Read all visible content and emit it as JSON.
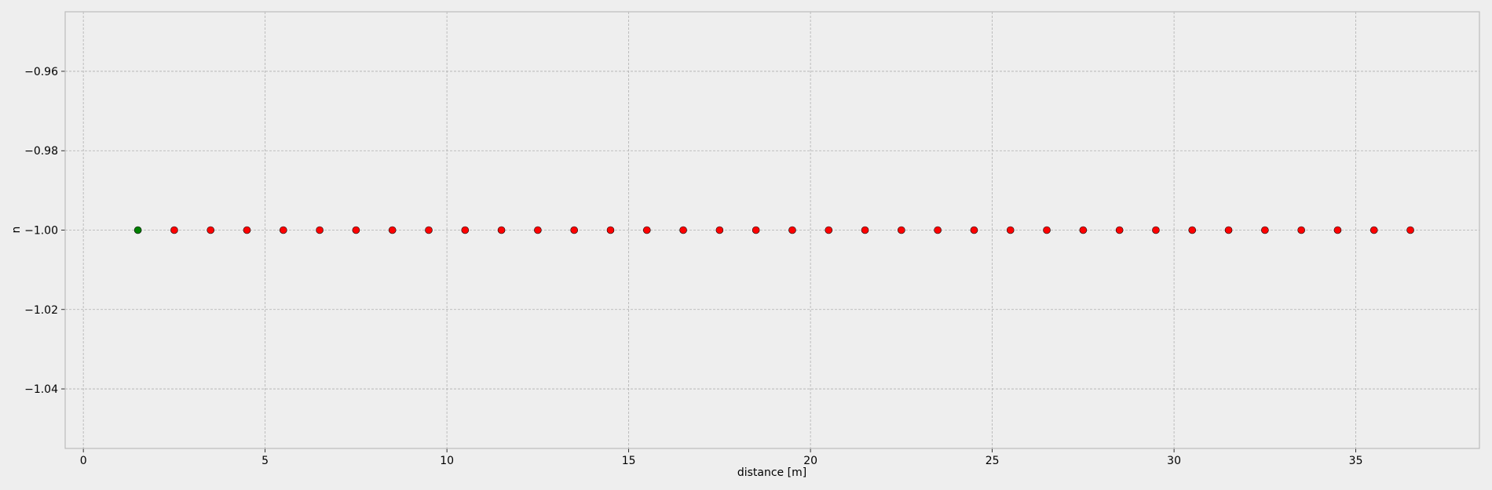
{
  "chart_data": {
    "type": "scatter",
    "xlabel": "distance [m]",
    "ylabel": "n",
    "xlim": [
      -0.5,
      38.4
    ],
    "ylim": [
      -1.055,
      -0.945
    ],
    "xticks": [
      0,
      5,
      10,
      15,
      20,
      25,
      30,
      35
    ],
    "xtick_labels": [
      "0",
      "5",
      "10",
      "15",
      "20",
      "25",
      "30",
      "35"
    ],
    "yticks": [
      -0.96,
      -0.98,
      -1.0,
      -1.02,
      -1.04
    ],
    "ytick_labels": [
      "−0.96",
      "−0.98",
      "−1.00",
      "−1.02",
      "−1.04"
    ],
    "grid": true,
    "series": [
      {
        "color": "#008000",
        "edgecolor": "#000000",
        "points": [
          [
            1.5,
            -1.0
          ]
        ]
      },
      {
        "color": "#ff0000",
        "edgecolor": "#000000",
        "points": [
          [
            2.5,
            -1.0
          ],
          [
            3.5,
            -1.0
          ],
          [
            4.5,
            -1.0
          ],
          [
            5.5,
            -1.0
          ],
          [
            6.5,
            -1.0
          ],
          [
            7.5,
            -1.0
          ],
          [
            8.5,
            -1.0
          ],
          [
            9.5,
            -1.0
          ],
          [
            10.5,
            -1.0
          ],
          [
            11.5,
            -1.0
          ],
          [
            12.5,
            -1.0
          ],
          [
            13.5,
            -1.0
          ],
          [
            14.5,
            -1.0
          ],
          [
            15.5,
            -1.0
          ],
          [
            16.5,
            -1.0
          ],
          [
            17.5,
            -1.0
          ],
          [
            18.5,
            -1.0
          ],
          [
            19.5,
            -1.0
          ],
          [
            20.5,
            -1.0
          ],
          [
            21.5,
            -1.0
          ],
          [
            22.5,
            -1.0
          ],
          [
            23.5,
            -1.0
          ],
          [
            24.5,
            -1.0
          ],
          [
            25.5,
            -1.0
          ],
          [
            26.5,
            -1.0
          ],
          [
            27.5,
            -1.0
          ],
          [
            28.5,
            -1.0
          ],
          [
            29.5,
            -1.0
          ],
          [
            30.5,
            -1.0
          ],
          [
            31.5,
            -1.0
          ],
          [
            32.5,
            -1.0
          ],
          [
            33.5,
            -1.0
          ],
          [
            34.5,
            -1.0
          ],
          [
            35.5,
            -1.0
          ],
          [
            36.5,
            -1.0
          ]
        ]
      }
    ],
    "colors": {
      "background": "#eeeeee",
      "plot_background": "#eeeeee",
      "grid": "#b0b0b0",
      "spine": "#bcbcbc"
    }
  }
}
